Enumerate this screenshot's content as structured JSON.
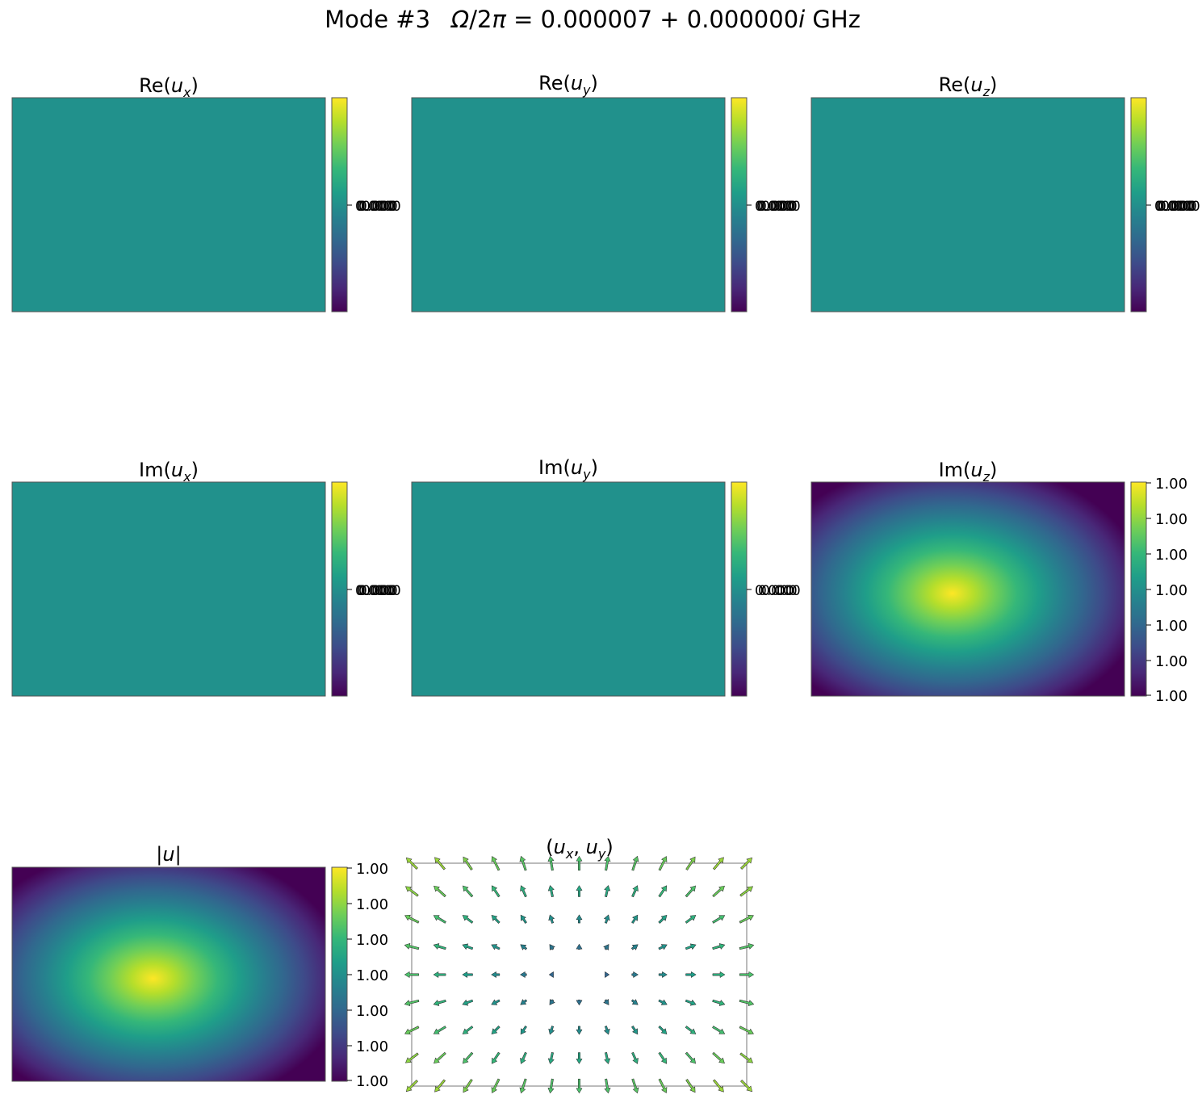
{
  "figure": {
    "title_prefix": "Mode #3",
    "title_omega": "Ω",
    "title_mid": "/2",
    "title_pi": "π",
    "title_value": " = 0.000007 + 0.000000",
    "title_i": "i",
    "title_unit": " GHz"
  },
  "colormap": {
    "name": "viridis",
    "stops": [
      "#440154",
      "#482878",
      "#3e4a89",
      "#31688e",
      "#26828e",
      "#1f9e89",
      "#35b779",
      "#6ece58",
      "#b5de2b",
      "#fde725"
    ],
    "uniform_color": "#21918c"
  },
  "chart_data": [
    {
      "id": "re-ux",
      "type": "heatmap",
      "title_prefix": "Re(",
      "title_sym": "u",
      "title_sub": "x",
      "title_suffix": ")",
      "field": "uniform",
      "colorbar_ticks": [
        "0.000",
        "0.000",
        "0.000",
        "0.000"
      ]
    },
    {
      "id": "re-uy",
      "type": "heatmap",
      "title_prefix": "Re(",
      "title_sym": "u",
      "title_sub": "y",
      "title_suffix": ")",
      "field": "uniform",
      "colorbar_ticks": [
        "0.000",
        "0.000",
        "0.000",
        "0.000"
      ]
    },
    {
      "id": "re-uz",
      "type": "heatmap",
      "title_prefix": "Re(",
      "title_sym": "u",
      "title_sub": "z",
      "title_suffix": ")",
      "field": "uniform",
      "colorbar_ticks": [
        "0.000",
        "0.000",
        "0.000",
        "0.000"
      ]
    },
    {
      "id": "im-ux",
      "type": "heatmap",
      "title_prefix": "Im(",
      "title_sym": "u",
      "title_sub": "x",
      "title_suffix": ")",
      "field": "uniform",
      "colorbar_ticks": [
        "0.000",
        "0.000",
        "0.000",
        "0.000"
      ]
    },
    {
      "id": "im-uy",
      "type": "heatmap",
      "title_prefix": "Im(",
      "title_sym": "u",
      "title_sub": "y",
      "title_suffix": ")",
      "field": "uniform",
      "colorbar_ticks": [
        "0.000",
        "0.000",
        "0.000"
      ]
    },
    {
      "id": "im-uz",
      "type": "heatmap",
      "title_prefix": "Im(",
      "title_sym": "u",
      "title_sub": "z",
      "title_suffix": ")",
      "field": "bump",
      "colorbar_ticks": [
        "1.00",
        "1.00",
        "1.00",
        "1.00",
        "1.00",
        "1.00",
        "1.00"
      ]
    },
    {
      "id": "abs-u",
      "type": "heatmap",
      "title_prefix": "|",
      "title_sym": "u",
      "title_sub": "",
      "title_suffix": "|",
      "field": "bump",
      "colorbar_ticks": [
        "1.00",
        "1.00",
        "1.00",
        "1.00",
        "1.00",
        "1.00",
        "1.00"
      ]
    },
    {
      "id": "quiver-uxuy",
      "type": "quiver",
      "title_prefix": "(",
      "title_sym": "u",
      "title_sub": "x",
      "title_mid": ", ",
      "title_sym2": "u",
      "title_sub2": "y",
      "title_suffix": ")",
      "grid_cols": 13,
      "grid_rows": 9
    }
  ]
}
